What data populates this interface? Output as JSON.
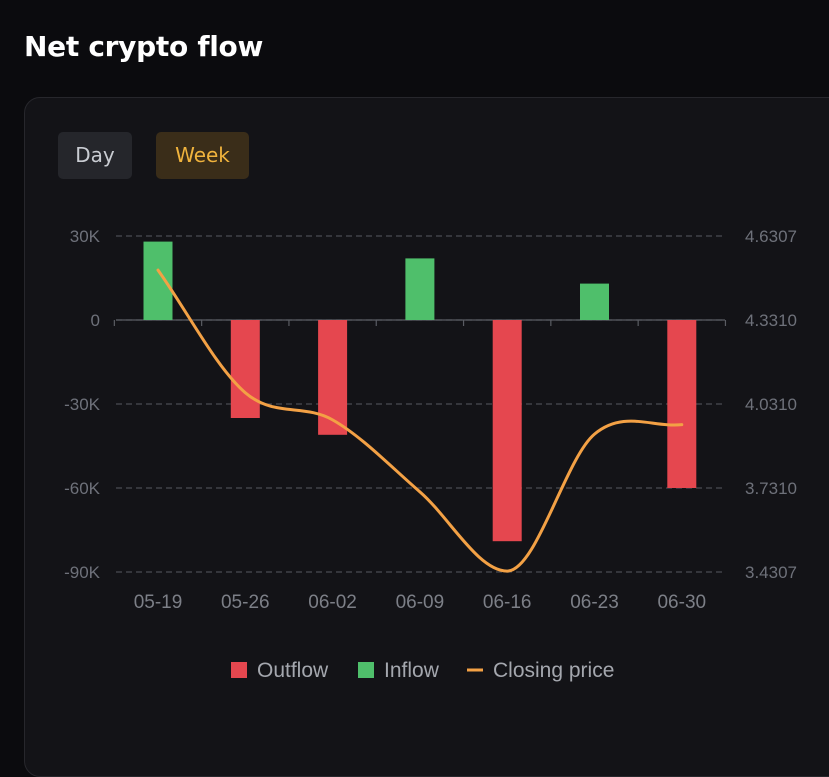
{
  "header": {
    "title": "Net crypto flow"
  },
  "tabs": [
    {
      "label": "Day",
      "active": false
    },
    {
      "label": "Week",
      "active": true
    }
  ],
  "colors": {
    "outflow": "#e5474f",
    "inflow": "#4fbf6b",
    "closing_price": "#f3a145",
    "active_tab_text": "#f0b33d"
  },
  "chart_data": {
    "type": "bar",
    "categories": [
      "05-19",
      "05-26",
      "06-02",
      "06-09",
      "06-16",
      "06-23",
      "06-30"
    ],
    "bar_series": [
      {
        "name": "Outflow",
        "values": [
          0,
          -35000,
          -41000,
          0,
          -79000,
          0,
          -60000
        ]
      },
      {
        "name": "Inflow",
        "values": [
          28000,
          0,
          0,
          22000,
          0,
          13000,
          0
        ]
      }
    ],
    "line_series": [
      {
        "name": "Closing price",
        "values": [
          4.509,
          4.071,
          3.974,
          3.717,
          3.434,
          3.923,
          3.957
        ]
      }
    ],
    "y_left": {
      "ticks": [
        30000,
        0,
        -30000,
        -60000,
        -90000
      ],
      "tick_labels": [
        "30K",
        "0",
        "-30K",
        "-60K",
        "-90K"
      ],
      "range": [
        -90000,
        30000
      ]
    },
    "y_right": {
      "ticks": [
        4.6307,
        4.331,
        4.031,
        3.731,
        3.4307
      ],
      "tick_labels": [
        "4.6307",
        "4.3310",
        "4.0310",
        "3.7310",
        "3.4307"
      ],
      "range": [
        3.4307,
        4.6307
      ]
    },
    "grid": "dashed-horizontal",
    "legend": {
      "position": "bottom",
      "items": [
        {
          "label": "Outflow",
          "marker": "square",
          "color": "#e5474f"
        },
        {
          "label": "Inflow",
          "marker": "square",
          "color": "#4fbf6b"
        },
        {
          "label": "Closing price",
          "marker": "line",
          "color": "#f3a145"
        }
      ]
    }
  }
}
